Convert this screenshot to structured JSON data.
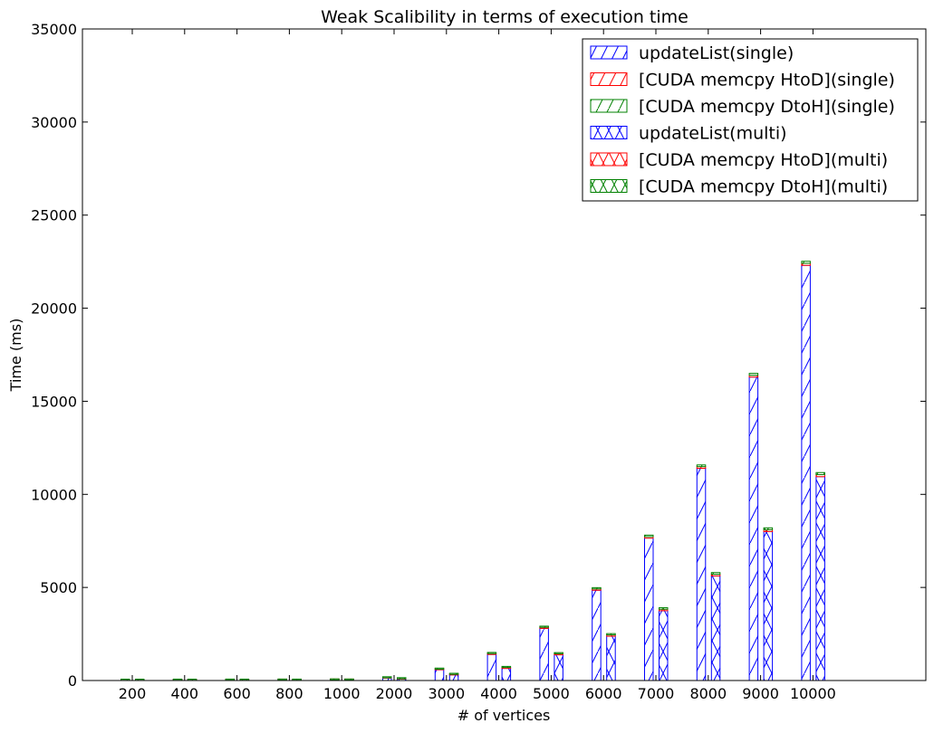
{
  "chart_data": {
    "type": "bar",
    "stacked": true,
    "title": "Weak Scalibility in terms of execution time",
    "xlabel": "# of vertices",
    "ylabel": "Time (ms)",
    "ylim": [
      0,
      35000
    ],
    "yticks": [
      0,
      5000,
      10000,
      15000,
      20000,
      25000,
      30000,
      35000
    ],
    "categories": [
      "200",
      "400",
      "600",
      "800",
      "1000",
      "2000",
      "3000",
      "4000",
      "5000",
      "6000",
      "7000",
      "8000",
      "9000",
      "10000"
    ],
    "legend_position": "top-right",
    "grid": false,
    "series": [
      {
        "name": "updateList(single)",
        "group": "single",
        "color": "#0000ff",
        "hatch": "/",
        "values": [
          10,
          12,
          15,
          18,
          25,
          130,
          580,
          1400,
          2800,
          4850,
          7650,
          11400,
          16300,
          22300
        ]
      },
      {
        "name": "[CUDA memcpy HtoD](single)",
        "group": "single",
        "color": "#ff0000",
        "hatch": "/",
        "values": [
          5,
          5,
          5,
          5,
          6,
          15,
          30,
          50,
          60,
          70,
          80,
          90,
          100,
          110
        ]
      },
      {
        "name": "[CUDA memcpy DtoH](single)",
        "group": "single",
        "color": "#008000",
        "hatch": "/",
        "values": [
          5,
          5,
          5,
          5,
          6,
          15,
          30,
          50,
          60,
          70,
          80,
          90,
          100,
          110
        ]
      },
      {
        "name": "updateList(multi)",
        "group": "multi",
        "color": "#0000ff",
        "hatch": "x",
        "values": [
          8,
          10,
          12,
          14,
          20,
          80,
          300,
          650,
          1380,
          2380,
          3750,
          5620,
          8000,
          10950
        ]
      },
      {
        "name": "[CUDA memcpy HtoD](multi)",
        "group": "multi",
        "color": "#ff0000",
        "hatch": "x",
        "values": [
          5,
          5,
          5,
          5,
          6,
          15,
          30,
          50,
          60,
          70,
          80,
          90,
          100,
          110
        ]
      },
      {
        "name": "[CUDA memcpy DtoH](multi)",
        "group": "multi",
        "color": "#008000",
        "hatch": "x",
        "values": [
          5,
          5,
          5,
          5,
          6,
          15,
          30,
          50,
          60,
          70,
          80,
          90,
          100,
          110
        ]
      }
    ]
  }
}
